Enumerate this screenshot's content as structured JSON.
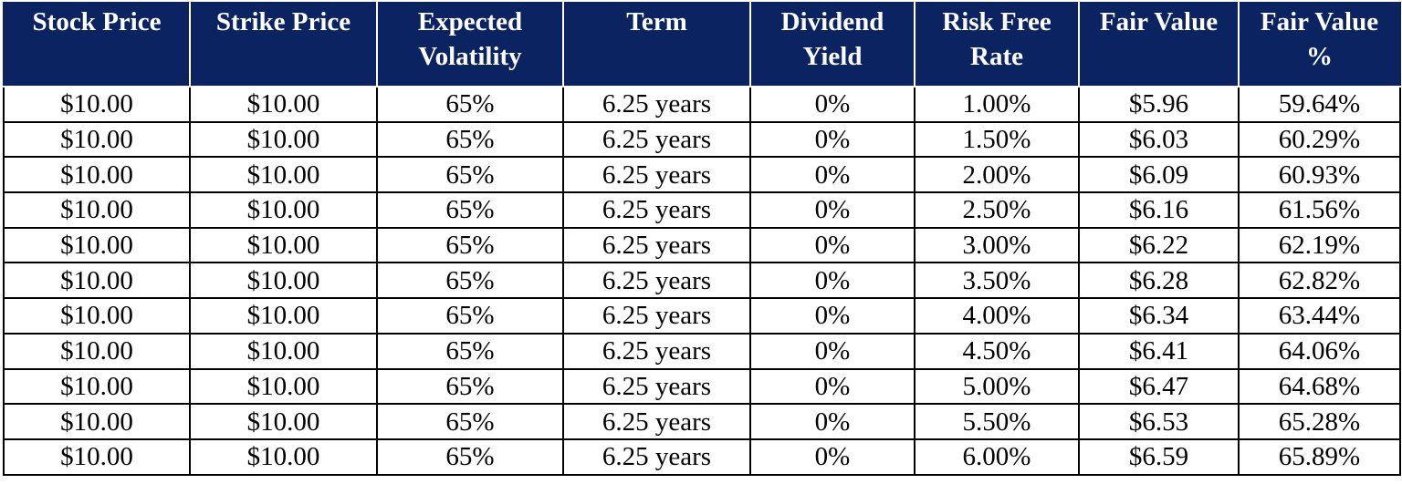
{
  "table": {
    "headers": [
      "Stock Price",
      "Strike Price",
      "Expected Volatility",
      "Term",
      "Dividend Yield",
      "Risk Free Rate",
      "Fair Value",
      "Fair Value %"
    ],
    "rows": [
      [
        "$10.00",
        "$10.00",
        "65%",
        "6.25 years",
        "0%",
        "1.00%",
        "$5.96",
        "59.64%"
      ],
      [
        "$10.00",
        "$10.00",
        "65%",
        "6.25 years",
        "0%",
        "1.50%",
        "$6.03",
        "60.29%"
      ],
      [
        "$10.00",
        "$10.00",
        "65%",
        "6.25 years",
        "0%",
        "2.00%",
        "$6.09",
        "60.93%"
      ],
      [
        "$10.00",
        "$10.00",
        "65%",
        "6.25 years",
        "0%",
        "2.50%",
        "$6.16",
        "61.56%"
      ],
      [
        "$10.00",
        "$10.00",
        "65%",
        "6.25 years",
        "0%",
        "3.00%",
        "$6.22",
        "62.19%"
      ],
      [
        "$10.00",
        "$10.00",
        "65%",
        "6.25 years",
        "0%",
        "3.50%",
        "$6.28",
        "62.82%"
      ],
      [
        "$10.00",
        "$10.00",
        "65%",
        "6.25 years",
        "0%",
        "4.00%",
        "$6.34",
        "63.44%"
      ],
      [
        "$10.00",
        "$10.00",
        "65%",
        "6.25 years",
        "0%",
        "4.50%",
        "$6.41",
        "64.06%"
      ],
      [
        "$10.00",
        "$10.00",
        "65%",
        "6.25 years",
        "0%",
        "5.00%",
        "$6.47",
        "64.68%"
      ],
      [
        "$10.00",
        "$10.00",
        "65%",
        "6.25 years",
        "0%",
        "5.50%",
        "$6.53",
        "65.28%"
      ],
      [
        "$10.00",
        "$10.00",
        "65%",
        "6.25 years",
        "0%",
        "6.00%",
        "$6.59",
        "65.89%"
      ]
    ]
  },
  "colors": {
    "header_background": "#0b2461",
    "header_text": "#ffffff",
    "cell_text": "#000000",
    "grid_lines": "#000000"
  }
}
